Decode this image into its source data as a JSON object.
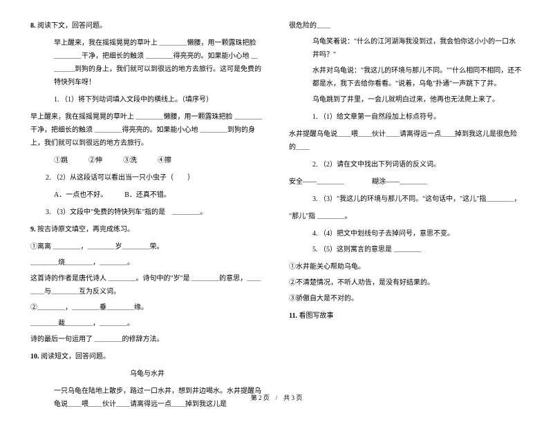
{
  "left": {
    "q8": {
      "num": "8.",
      "title": "阅读下文，回答问题。",
      "p1": "早上醒来，我在摇摇晃晃的草叶上 ＿＿＿＿懒腰，用一颗露珠把脸 ＿＿＿＿干净，把细长的触须 ＿＿＿＿得亮亮的。如果能小心地 ＿＿＿＿到狗的身上，我们就可以到很远的地方去旅行。这可是免费的特快列车呀！",
      "sub1_label": "1.",
      "sub1_text": "（1）将下列动词填入文段中的横线上。（填序号）",
      "fill_para": "早上醒来，我在摇摇晃晃的草叶上 ＿＿＿＿懒腰，用一颗露珠把脸 ＿＿＿＿干净，把细长的触须 ＿＿＿＿得亮亮的。如果能小心地 ＿＿＿＿到狗的身上，我们就可以到很远的地方去旅行。",
      "opts": "①跳　　　②伸　　　③洗　　　④擦",
      "sub2_label": "2.",
      "sub2_text": "（2）从这段话可以看出当一只小虫子（　　）",
      "sub2_optA": "A．一点也不好。",
      "sub2_optB": "B．还真不错。",
      "sub3_label": "3.",
      "sub3_text": "（3）文段中\"免费的特快列车\"指的是　＿＿＿＿。"
    },
    "q9": {
      "num": "9.",
      "title": "按古诗原文填空，再完成练习。",
      "l1": "①离离 ＿＿＿＿，＿＿＿＿岁＿＿＿＿荣。",
      "l2": "＿＿＿＿烧＿＿＿＿，＿＿＿＿。",
      "l3": "这首诗的作者是唐代诗人 ＿＿＿＿。诗句中的\"岁\"是 ＿＿＿＿的意思，＿＿＿＿与＿＿＿＿互为反义词。",
      "l4": "②＿＿＿＿，＿＿＿＿垂＿＿＿＿缘。",
      "l5": "＿＿＿＿裁＿＿＿＿，＿＿＿＿。",
      "l6": "诗的最后一句运用了 ＿＿＿＿的修辞方法。"
    },
    "q10": {
      "num": "10.",
      "title": "阅读短文，回答问题。",
      "story_title": "乌龟与水井",
      "p1": "一只乌龟在陆地上散步，路过一口水井，想到井边喝水。水井提醒乌龟说＿＿喂＿＿伙计＿＿请离得远一点＿＿掉到我这儿是"
    }
  },
  "right": {
    "cont1": "很危险的＿＿",
    "cont2": "乌龟笑着说：\"什么的江河湖海我没到过，我会怕你这小小的一口水井吗？\"",
    "cont3": "水井对乌龟说：\"我这儿的环境与那儿不同。\"\"什么相同不相同，还不都是水，我下去给你看看。\"说着，乌龟\"扑通\"一声跳下了井。",
    "cont4": "乌龟跳到了井里，一会儿就明白过来，他再也无法爬上来了。",
    "sub1_label": "1.",
    "sub1_text": "（1）给文章第一自然段加上标点符号。",
    "fill1": "水井提醒乌龟说＿＿喂＿＿伙计＿＿请离得远一点＿＿掉到我这儿是很危险的＿＿",
    "sub2_label": "2.",
    "sub2_text": "（2）请在文中找出下列词语的反义词。",
    "fill2": "安全——＿＿＿＿　　　　糊涂——＿＿＿＿",
    "sub3_label": "3.",
    "sub3_text": "（3）\"我这儿的环境与那儿不同。\"这句话中，\"这儿\"指＿＿＿＿，",
    "sub3_text2": "\"那儿\"指 ＿＿＿＿。",
    "sub4_label": "4.",
    "sub4_text": "（4）把文中划线句子去掉问号，意思不变。",
    "sub5_label": "5.",
    "sub5_text": "（5）这则寓言的意思是 ＿＿＿＿",
    "opt1": "①水井能关心帮助乌龟。",
    "opt2": "②不清楚情况，不听人劝告，是没有好结果的。",
    "opt3": "③骄傲自大是不对的。",
    "q11_num": "11.",
    "q11_title": "看图写故事"
  },
  "footer": "第 2 页　/　共 3 页"
}
